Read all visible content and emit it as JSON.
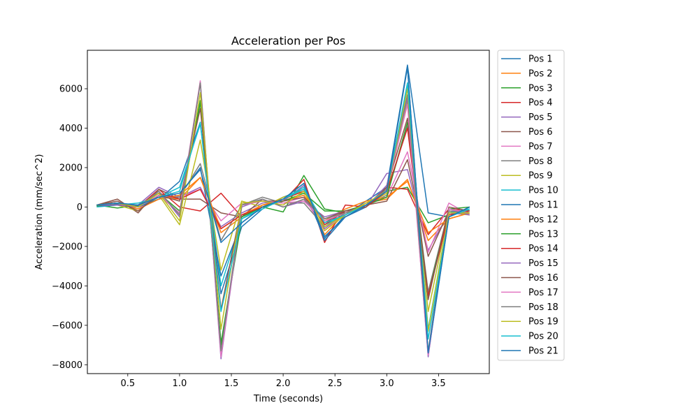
{
  "chart_data": {
    "type": "line",
    "title": "Acceleration per Pos",
    "xlabel": "Time (seconds)",
    "ylabel": "Acceleration (mm/sec^2)",
    "xlim": [
      0.11,
      3.99
    ],
    "ylim": [
      -8450,
      7950
    ],
    "xticks": [
      0.5,
      1.0,
      1.5,
      2.0,
      2.5,
      3.0,
      3.5
    ],
    "xtick_labels": [
      "0.5",
      "1.0",
      "1.5",
      "2.0",
      "2.5",
      "3.0",
      "3.5"
    ],
    "yticks": [
      -8000,
      -6000,
      -4000,
      -2000,
      0,
      2000,
      4000,
      6000
    ],
    "ytick_labels": [
      "−8000",
      "−6000",
      "−4000",
      "−2000",
      "0",
      "2000",
      "4000",
      "6000"
    ],
    "grid": false,
    "legend_position": "outside-right-top",
    "x": [
      0.2,
      0.4,
      0.6,
      0.8,
      1.0,
      1.2,
      1.4,
      1.6,
      1.8,
      2.0,
      2.2,
      2.4,
      2.6,
      2.8,
      3.0,
      3.2,
      3.4,
      3.6,
      3.8
    ],
    "series": [
      {
        "name": "Pos 1",
        "color": "#1f77b4",
        "values": [
          50,
          150,
          50,
          400,
          1300,
          4300,
          -4400,
          -1000,
          -100,
          500,
          900,
          -1600,
          -400,
          300,
          1000,
          7200,
          -300,
          -500,
          -100
        ]
      },
      {
        "name": "Pos 2",
        "color": "#ff7f0e",
        "values": [
          100,
          200,
          0,
          500,
          400,
          1500,
          -1300,
          -500,
          100,
          400,
          900,
          -1400,
          -300,
          200,
          400,
          1400,
          -1700,
          -600,
          -300
        ]
      },
      {
        "name": "Pos 3",
        "color": "#2ca02c",
        "values": [
          100,
          -50,
          100,
          700,
          -200,
          5300,
          -7000,
          -600,
          0,
          -250,
          1600,
          -100,
          -300,
          100,
          800,
          1000,
          -800,
          -400,
          -200
        ]
      },
      {
        "name": "Pos 4",
        "color": "#d62728",
        "values": [
          100,
          200,
          0,
          900,
          0,
          -200,
          700,
          -500,
          0,
          300,
          1400,
          -1800,
          100,
          0,
          1000,
          900,
          -1400,
          -100,
          -200
        ]
      },
      {
        "name": "Pos 5",
        "color": "#9467bd",
        "values": [
          100,
          100,
          100,
          1000,
          500,
          1000,
          -1000,
          -300,
          200,
          300,
          1100,
          -1100,
          -300,
          0,
          1700,
          1900,
          -2200,
          -300,
          -400
        ]
      },
      {
        "name": "Pos 6",
        "color": "#8c564b",
        "values": [
          100,
          400,
          -300,
          900,
          400,
          400,
          -300,
          -500,
          400,
          0,
          400,
          -800,
          -200,
          100,
          300,
          2400,
          -2500,
          -200,
          -300
        ]
      },
      {
        "name": "Pos 7",
        "color": "#e377c2",
        "values": [
          100,
          200,
          -100,
          600,
          500,
          900,
          -700,
          200,
          300,
          200,
          500,
          -1200,
          -300,
          100,
          500,
          2800,
          -2300,
          200,
          -400
        ]
      },
      {
        "name": "Pos 8",
        "color": "#7f7f7f",
        "values": [
          100,
          200,
          0,
          500,
          500,
          2200,
          -1700,
          100,
          500,
          200,
          200,
          -1000,
          -300,
          100,
          600,
          4100,
          -4300,
          -100,
          -300
        ]
      },
      {
        "name": "Pos 9",
        "color": "#bcbd22",
        "values": [
          100,
          100,
          -200,
          600,
          -900,
          3400,
          -3200,
          300,
          0,
          500,
          800,
          -1200,
          -400,
          100,
          700,
          5400,
          -5300,
          -200,
          -400
        ]
      },
      {
        "name": "Pos 10",
        "color": "#17becf",
        "values": [
          0,
          100,
          200,
          500,
          1000,
          4200,
          -4000,
          -600,
          0,
          400,
          1000,
          -900,
          -400,
          100,
          800,
          6200,
          -6200,
          -300,
          -100
        ]
      },
      {
        "name": "Pos 11",
        "color": "#1f77b4",
        "values": [
          50,
          100,
          0,
          400,
          600,
          2000,
          -3500,
          -800,
          0,
          400,
          1200,
          -1700,
          -500,
          0,
          900,
          7100,
          -7500,
          -500,
          0
        ]
      },
      {
        "name": "Pos 12",
        "color": "#ff7f0e",
        "values": [
          100,
          200,
          -100,
          400,
          600,
          1500,
          -1100,
          -400,
          100,
          300,
          600,
          -700,
          -100,
          300,
          500,
          1300,
          -1300,
          -600,
          -300
        ]
      },
      {
        "name": "Pos 13",
        "color": "#2ca02c",
        "values": [
          50,
          200,
          0,
          600,
          -300,
          5400,
          -6900,
          -500,
          0,
          300,
          700,
          -200,
          -200,
          100,
          500,
          4300,
          -4500,
          -100,
          0
        ]
      },
      {
        "name": "Pos 14",
        "color": "#d62728",
        "values": [
          100,
          100,
          0,
          700,
          400,
          900,
          -1100,
          -400,
          0,
          400,
          800,
          -900,
          -200,
          0,
          800,
          4000,
          -4500,
          -400,
          -200
        ]
      },
      {
        "name": "Pos 15",
        "color": "#9467bd",
        "values": [
          100,
          100,
          0,
          800,
          -500,
          6300,
          -7700,
          0,
          400,
          0,
          300,
          -500,
          -200,
          0,
          1100,
          5500,
          -7600,
          -100,
          -400
        ]
      },
      {
        "name": "Pos 16",
        "color": "#8c564b",
        "values": [
          100,
          300,
          -200,
          600,
          300,
          5000,
          -5200,
          100,
          300,
          300,
          500,
          -600,
          -200,
          0,
          1000,
          4500,
          -4700,
          0,
          -200
        ]
      },
      {
        "name": "Pos 17",
        "color": "#e377c2",
        "values": [
          100,
          200,
          0,
          600,
          -300,
          6400,
          -7600,
          100,
          300,
          200,
          300,
          -700,
          -300,
          100,
          900,
          5200,
          -7500,
          -100,
          -300
        ]
      },
      {
        "name": "Pos 18",
        "color": "#7f7f7f",
        "values": [
          100,
          200,
          0,
          800,
          -400,
          6300,
          -7300,
          100,
          400,
          0,
          400,
          -600,
          -300,
          100,
          900,
          5700,
          -7300,
          -200,
          -300
        ]
      },
      {
        "name": "Pos 19",
        "color": "#bcbd22",
        "values": [
          100,
          200,
          0,
          700,
          -700,
          5800,
          -6200,
          200,
          300,
          100,
          800,
          -1000,
          -400,
          200,
          800,
          6000,
          -6300,
          -300,
          -300
        ]
      },
      {
        "name": "Pos 20",
        "color": "#17becf",
        "values": [
          100,
          200,
          100,
          500,
          800,
          4300,
          -5300,
          -600,
          -100,
          400,
          900,
          -800,
          -400,
          100,
          800,
          6300,
          -6700,
          -500,
          -100
        ]
      },
      {
        "name": "Pos 21",
        "color": "#1f77b4",
        "values": [
          100,
          200,
          100,
          500,
          700,
          1900,
          -1800,
          -800,
          0,
          400,
          1200,
          -1500,
          -500,
          100,
          800,
          7100,
          -7400,
          -500,
          0
        ]
      }
    ]
  }
}
